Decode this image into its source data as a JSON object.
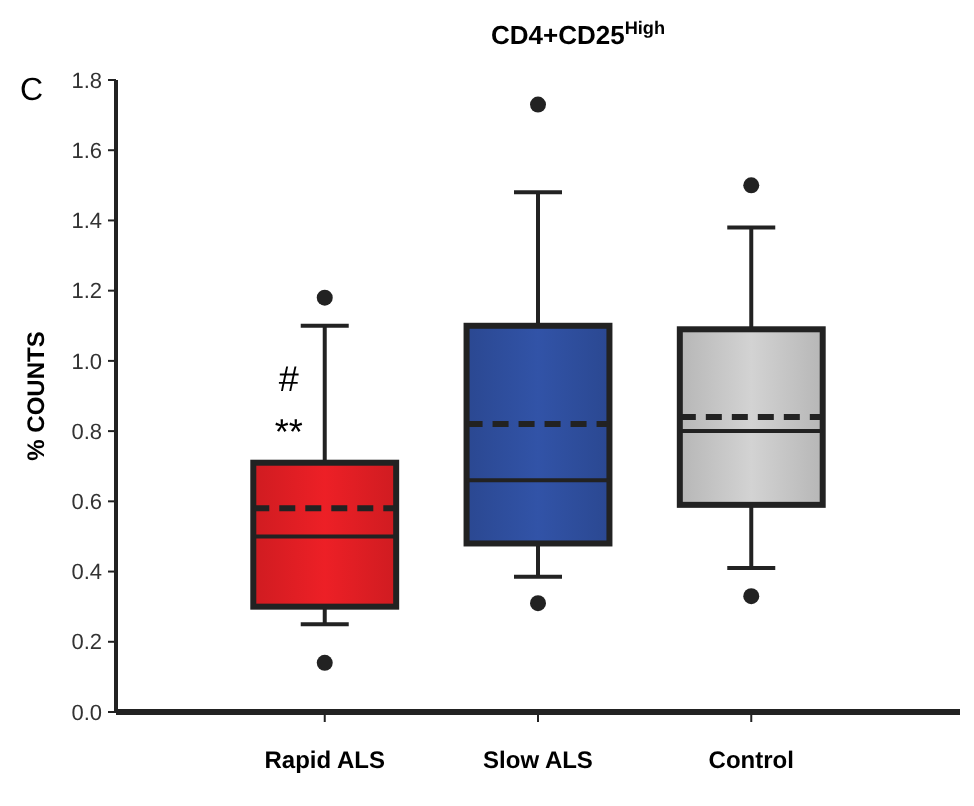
{
  "chart_data": {
    "type": "box",
    "title": "CD4+CD25$^{High}$",
    "ylabel": "% COUNTS",
    "categories": [
      "Rapid ALS",
      "Slow ALS",
      "Control"
    ],
    "colors": [
      "#e31e24",
      "#2f4f9f",
      "#c8c8c8"
    ],
    "boxes": [
      {
        "low": 0.25,
        "q1": 0.3,
        "median": 0.5,
        "q3": 0.71,
        "high": 1.1,
        "mean": 0.58,
        "outliers": [
          1.18,
          0.14
        ]
      },
      {
        "low": 0.385,
        "q1": 0.48,
        "median": 0.66,
        "q3": 1.1,
        "high": 1.48,
        "mean": 0.82,
        "outliers": [
          1.73,
          0.31
        ]
      },
      {
        "low": 0.41,
        "q1": 0.59,
        "median": 0.8,
        "q3": 1.09,
        "high": 1.38,
        "mean": 0.84,
        "outliers": [
          1.5,
          0.33
        ]
      }
    ],
    "ylim": [
      0,
      1.8
    ],
    "yticks": [
      {
        "value": 0,
        "label": "0.0"
      },
      0.2,
      0.4,
      0.6,
      0.8,
      {
        "value": 1,
        "label": "1.0"
      },
      1.2,
      1.4,
      1.6,
      1.8
    ],
    "annotations": [
      "C",
      {
        "text": "#",
        "x": "Rapid ALS",
        "y": 0.95
      },
      {
        "text": "**",
        "x": "Rapid ALS",
        "y": 0.8
      }
    ],
    "grid": false
  }
}
